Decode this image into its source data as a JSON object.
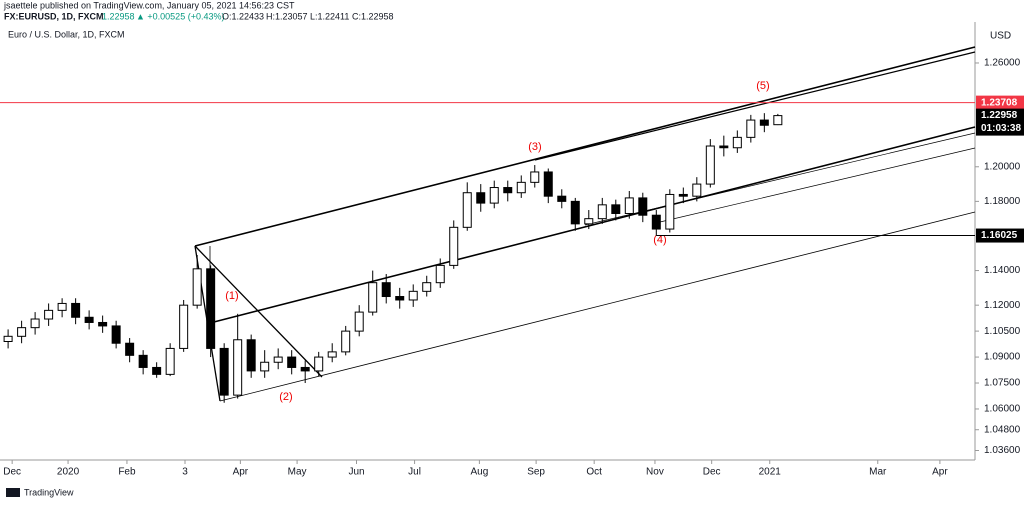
{
  "chart_data": {
    "type": "candlestick",
    "header": {
      "byline": "jsaettele published on TradingView.com, January 05, 2021 14:56:23 CST",
      "symbol": "FX:EURUSD, 1D, FXCM",
      "last": "1.22958",
      "change": "▲ +0.00525 (+0.43%)",
      "o": "O:1.22433",
      "h": "H:1.23057",
      "l": "L:1.22411",
      "c": "C:1.22958"
    },
    "title": "Euro / U.S. Dollar, 1D, FXCM",
    "currency": "USD",
    "countdown": "01:03:38",
    "footer": "TradingView",
    "annotations": [
      "(1)",
      "(2)",
      "(3)",
      "(4)",
      "(5)"
    ],
    "open": [
      1.099,
      1.102,
      1.107,
      1.112,
      1.117,
      1.121,
      1.113,
      1.11,
      1.108,
      1.098,
      1.091,
      1.084,
      1.08,
      1.095,
      1.12,
      1.141,
      1.095,
      1.068,
      1.1,
      1.082,
      1.087,
      1.09,
      1.084,
      1.082,
      1.09,
      1.093,
      1.105,
      1.116,
      1.133,
      1.125,
      1.123,
      1.128,
      1.133,
      1.143,
      1.165,
      1.185,
      1.179,
      1.188,
      1.185,
      1.191,
      1.197,
      1.183,
      1.18,
      1.167,
      1.17,
      1.178,
      1.173,
      1.182,
      1.172,
      1.164,
      1.184,
      1.183,
      1.19,
      1.212,
      1.211,
      1.217,
      1.227,
      1.22433
    ],
    "high": [
      1.106,
      1.111,
      1.116,
      1.121,
      1.124,
      1.124,
      1.117,
      1.114,
      1.111,
      1.101,
      1.094,
      1.087,
      1.098,
      1.123,
      1.149,
      1.143,
      1.098,
      1.115,
      1.103,
      1.094,
      1.095,
      1.094,
      1.088,
      1.093,
      1.098,
      1.108,
      1.12,
      1.14,
      1.138,
      1.13,
      1.132,
      1.137,
      1.147,
      1.169,
      1.191,
      1.19,
      1.192,
      1.192,
      1.195,
      1.201,
      1.199,
      1.187,
      1.182,
      1.175,
      1.182,
      1.181,
      1.186,
      1.185,
      1.175,
      1.187,
      1.188,
      1.194,
      1.216,
      1.218,
      1.221,
      1.23,
      1.231,
      1.23057
    ],
    "low": [
      1.095,
      1.098,
      1.103,
      1.108,
      1.113,
      1.109,
      1.106,
      1.104,
      1.095,
      1.087,
      1.08,
      1.078,
      1.079,
      1.093,
      1.118,
      1.09,
      1.0636,
      1.066,
      1.078,
      1.078,
      1.083,
      1.08,
      1.075,
      1.079,
      1.087,
      1.091,
      1.102,
      1.114,
      1.121,
      1.118,
      1.119,
      1.125,
      1.13,
      1.141,
      1.163,
      1.174,
      1.176,
      1.18,
      1.182,
      1.188,
      1.179,
      1.176,
      1.163,
      1.164,
      1.167,
      1.169,
      1.17,
      1.168,
      1.1602,
      1.162,
      1.179,
      1.18,
      1.188,
      1.206,
      1.208,
      1.214,
      1.22,
      1.22411
    ],
    "close": [
      1.102,
      1.107,
      1.112,
      1.117,
      1.121,
      1.113,
      1.11,
      1.108,
      1.098,
      1.091,
      1.084,
      1.08,
      1.095,
      1.12,
      1.141,
      1.095,
      1.068,
      1.1,
      1.082,
      1.087,
      1.09,
      1.084,
      1.082,
      1.09,
      1.093,
      1.105,
      1.116,
      1.133,
      1.125,
      1.123,
      1.128,
      1.133,
      1.143,
      1.165,
      1.185,
      1.179,
      1.188,
      1.185,
      1.191,
      1.197,
      1.183,
      1.18,
      1.167,
      1.17,
      1.178,
      1.173,
      1.182,
      1.172,
      1.164,
      1.184,
      1.183,
      1.19,
      1.212,
      1.211,
      1.217,
      1.227,
      1.224,
      1.22958
    ],
    "xlim": [
      -0.6,
      71.6
    ],
    "xticks": [
      {
        "value": 0.3,
        "label": "Dec"
      },
      {
        "value": 4.44,
        "label": "2020"
      },
      {
        "value": 8.8,
        "label": "Feb"
      },
      {
        "value": 13.1,
        "label": "3"
      },
      {
        "value": 17.2,
        "label": "Apr"
      },
      {
        "value": 21.4,
        "label": "May"
      },
      {
        "value": 25.8,
        "label": "Jun"
      },
      {
        "value": 30.1,
        "label": "Jul"
      },
      {
        "value": 34.9,
        "label": "Aug"
      },
      {
        "value": 39.1,
        "label": "Sep"
      },
      {
        "value": 43.4,
        "label": "Oct"
      },
      {
        "value": 47.9,
        "label": "Nov"
      },
      {
        "value": 52.1,
        "label": "Dec"
      },
      {
        "value": 56.4,
        "label": "2021"
      },
      {
        "value": 64.4,
        "label": "Mar"
      },
      {
        "value": 69.0,
        "label": "Apr"
      }
    ],
    "ylim": [
      1.0305,
      1.286
    ],
    "yticks": [
      {
        "value": 1.26,
        "label": "1.26000"
      },
      {
        "value": 1.2,
        "label": "1.20000"
      },
      {
        "value": 1.18,
        "label": "1.18000"
      },
      {
        "value": 1.14,
        "label": "1.14000"
      },
      {
        "value": 1.12,
        "label": "1.12000"
      },
      {
        "value": 1.105,
        "label": "1.10500"
      },
      {
        "value": 1.09,
        "label": "1.09000"
      },
      {
        "value": 1.075,
        "label": "1.07500"
      },
      {
        "value": 1.06,
        "label": "1.06000"
      },
      {
        "value": 1.048,
        "label": "1.04800"
      },
      {
        "value": 1.036,
        "label": "1.03600"
      }
    ],
    "hlines": [
      {
        "value": 1.23708,
        "color": "#f23645"
      },
      {
        "value": 1.16025,
        "color": "#000000"
      }
    ],
    "up_color": "#ffffff",
    "down_color": "#000000",
    "grid": false
  }
}
